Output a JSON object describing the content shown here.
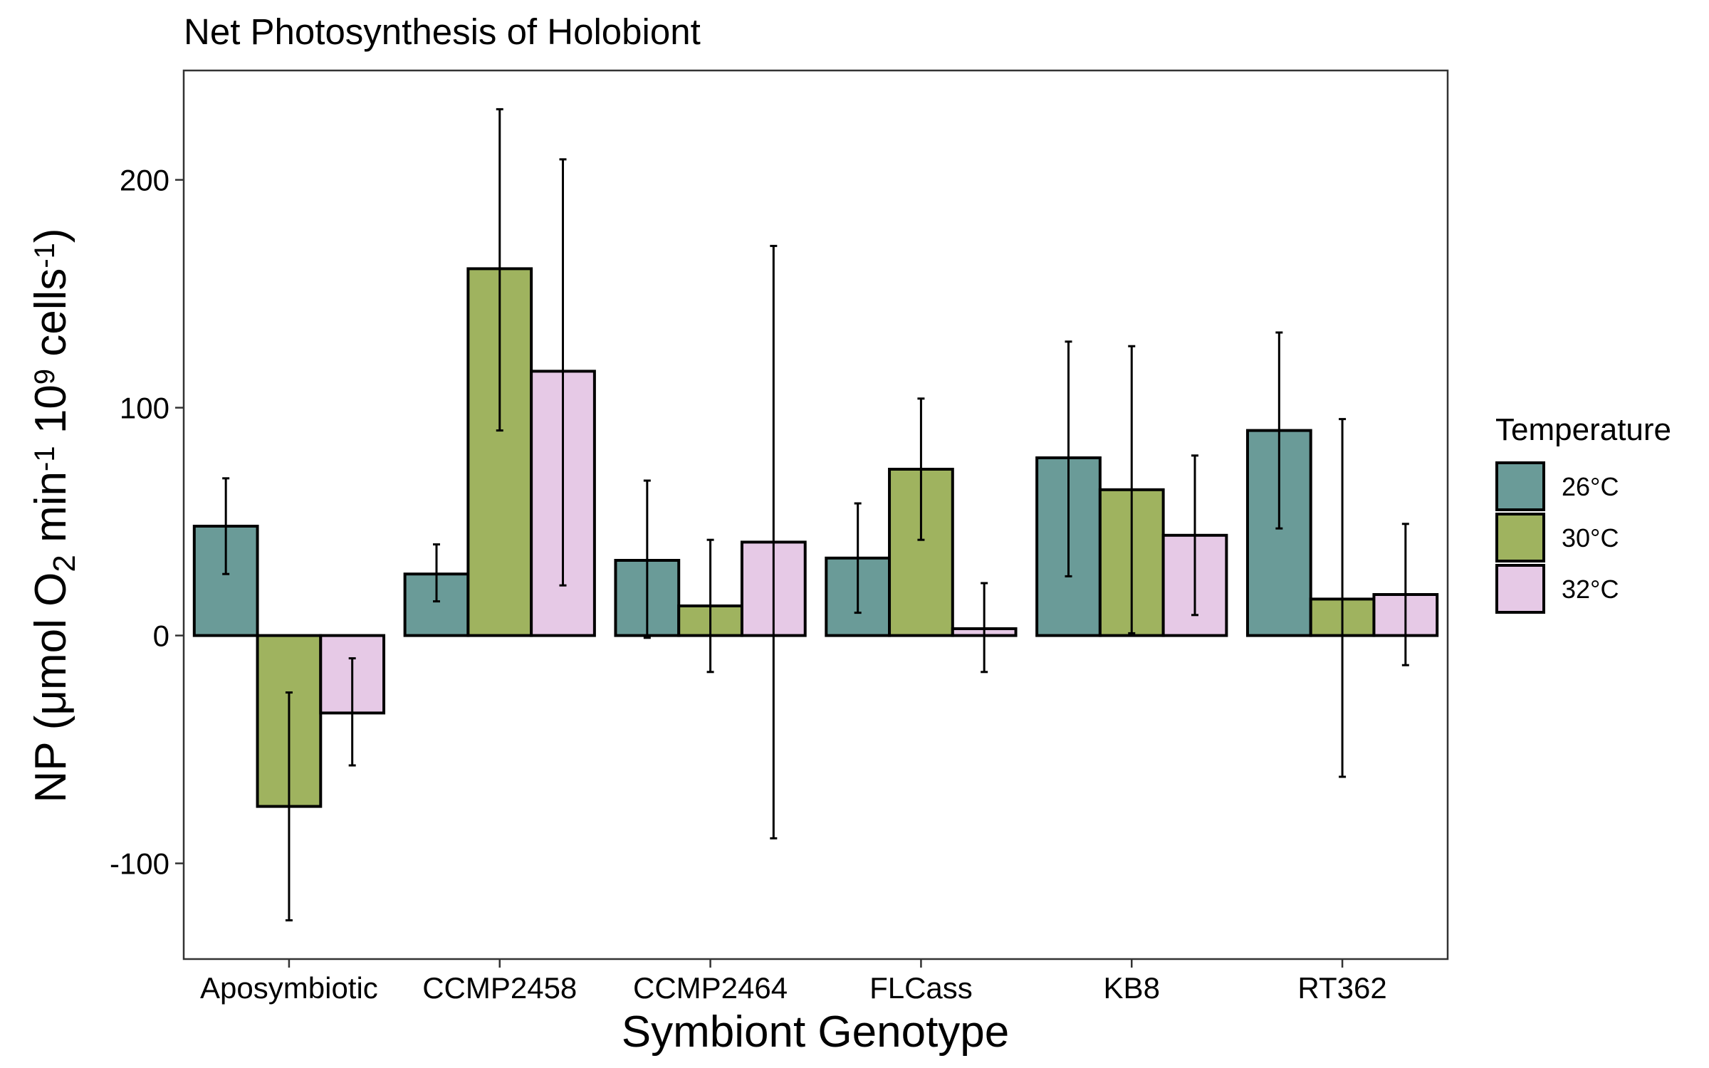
{
  "chart_data": {
    "type": "bar",
    "title": "Net Photosynthesis of Holobiont",
    "xlabel": "Symbiont Genotype",
    "ylabel_parts": [
      "NP (μmol O",
      "2",
      " min",
      "-1",
      " 10",
      "9",
      " cells",
      "-1",
      ")"
    ],
    "ylim": [
      -142,
      248
    ],
    "yticks": [
      -100,
      0,
      100,
      200
    ],
    "grid": false,
    "legend_position": "right",
    "legend_title": "Temperature",
    "categories": [
      "Aposymbiotic",
      "CCMP2458",
      "CCMP2464",
      "FLCass",
      "KB8",
      "RT362"
    ],
    "series": [
      {
        "name": "26°C",
        "color": "#6a9b98",
        "values": [
          48,
          27,
          33,
          34,
          78,
          90
        ],
        "err_low": [
          27,
          15,
          -1,
          10,
          26,
          47
        ],
        "err_high": [
          69,
          40,
          68,
          58,
          129,
          133
        ]
      },
      {
        "name": "30°C",
        "color": "#9fb35f",
        "values": [
          -75,
          161,
          13,
          73,
          64,
          16
        ],
        "err_low": [
          -125,
          90,
          -16,
          42,
          1,
          -62
        ],
        "err_high": [
          -25,
          231,
          42,
          104,
          127,
          95
        ]
      },
      {
        "name": "32°C",
        "color": "#e6c9e6",
        "values": [
          -34,
          116,
          41,
          3,
          44,
          18
        ],
        "err_low": [
          -57,
          22,
          -89,
          -16,
          9,
          -13
        ],
        "err_high": [
          -10,
          209,
          171,
          23,
          79,
          49
        ]
      }
    ]
  }
}
